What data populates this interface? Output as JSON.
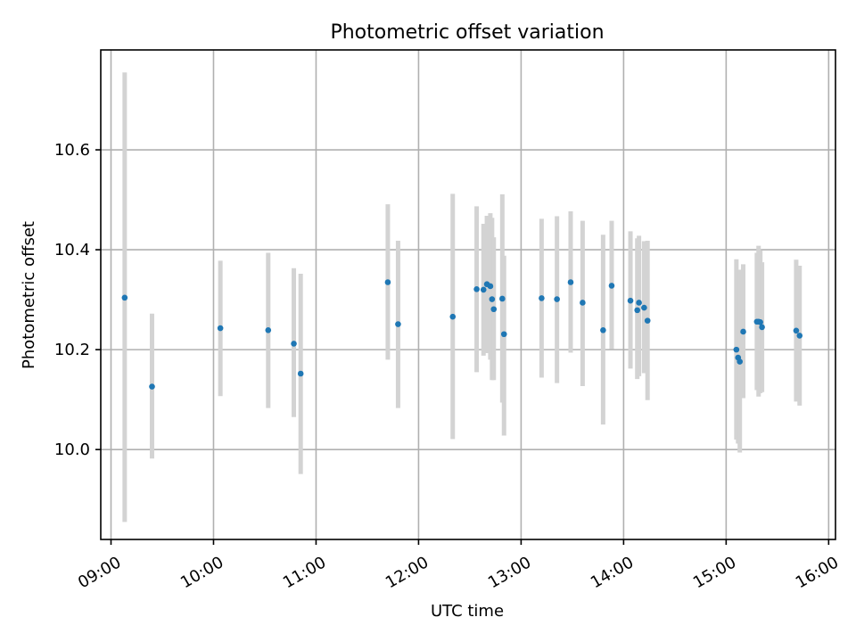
{
  "chart_data": {
    "type": "scatter",
    "title": "Photometric offset variation",
    "xlabel": "UTC time",
    "ylabel": "Photometric offset",
    "x_unit": "UTC time (HH:MM)",
    "xlim": [
      "08:54",
      "16:04"
    ],
    "ylim": [
      9.82,
      10.8
    ],
    "x_ticks": [
      "09:00",
      "10:00",
      "11:00",
      "12:00",
      "13:00",
      "14:00",
      "15:00",
      "16:00"
    ],
    "y_ticks": [
      10.0,
      10.2,
      10.4,
      10.6
    ],
    "y_tick_labels": [
      "10.0",
      "10.2",
      "10.4",
      "10.6"
    ],
    "grid": true,
    "marker_color": "#1f77b4",
    "errorbar_color": "#d3d3d3",
    "points": [
      {
        "time": "09:08",
        "y": 10.304,
        "low": 9.855,
        "high": 10.755
      },
      {
        "time": "09:24",
        "y": 10.126,
        "low": 9.982,
        "high": 10.272
      },
      {
        "time": "10:04",
        "y": 10.243,
        "low": 10.107,
        "high": 10.378
      },
      {
        "time": "10:32",
        "y": 10.239,
        "low": 10.083,
        "high": 10.394
      },
      {
        "time": "10:47",
        "y": 10.212,
        "low": 10.065,
        "high": 10.363
      },
      {
        "time": "10:51",
        "y": 10.152,
        "low": 9.951,
        "high": 10.352
      },
      {
        "time": "11:42",
        "y": 10.335,
        "low": 10.18,
        "high": 10.491
      },
      {
        "time": "11:48",
        "y": 10.251,
        "low": 10.083,
        "high": 10.418
      },
      {
        "time": "12:20",
        "y": 10.266,
        "low": 10.021,
        "high": 10.512
      },
      {
        "time": "12:34",
        "y": 10.321,
        "low": 10.155,
        "high": 10.487
      },
      {
        "time": "12:38",
        "y": 10.32,
        "low": 10.188,
        "high": 10.452
      },
      {
        "time": "12:40",
        "y": 10.331,
        "low": 10.193,
        "high": 10.468
      },
      {
        "time": "12:42",
        "y": 10.327,
        "low": 10.18,
        "high": 10.473
      },
      {
        "time": "12:43",
        "y": 10.301,
        "low": 10.139,
        "high": 10.464
      },
      {
        "time": "12:44",
        "y": 10.281,
        "low": 10.139,
        "high": 10.425
      },
      {
        "time": "12:49",
        "y": 10.302,
        "low": 10.094,
        "high": 10.511
      },
      {
        "time": "12:50",
        "y": 10.231,
        "low": 10.028,
        "high": 10.388
      },
      {
        "time": "13:12",
        "y": 10.303,
        "low": 10.144,
        "high": 10.462
      },
      {
        "time": "13:21",
        "y": 10.301,
        "low": 10.133,
        "high": 10.467
      },
      {
        "time": "13:29",
        "y": 10.335,
        "low": 10.194,
        "high": 10.477
      },
      {
        "time": "13:36",
        "y": 10.294,
        "low": 10.127,
        "high": 10.458
      },
      {
        "time": "13:48",
        "y": 10.239,
        "low": 10.05,
        "high": 10.43
      },
      {
        "time": "13:53",
        "y": 10.328,
        "low": 10.201,
        "high": 10.458
      },
      {
        "time": "14:04",
        "y": 10.298,
        "low": 10.162,
        "high": 10.437
      },
      {
        "time": "14:08",
        "y": 10.279,
        "low": 10.141,
        "high": 10.423
      },
      {
        "time": "14:09",
        "y": 10.294,
        "low": 10.147,
        "high": 10.428
      },
      {
        "time": "14:12",
        "y": 10.284,
        "low": 10.153,
        "high": 10.417
      },
      {
        "time": "14:14",
        "y": 10.258,
        "low": 10.099,
        "high": 10.418
      },
      {
        "time": "15:06",
        "y": 10.2,
        "low": 10.02,
        "high": 10.381
      },
      {
        "time": "15:07",
        "y": 10.184,
        "low": 10.012,
        "high": 10.356
      },
      {
        "time": "15:08",
        "y": 10.176,
        "low": 9.994,
        "high": 10.36
      },
      {
        "time": "15:10",
        "y": 10.236,
        "low": 10.103,
        "high": 10.371
      },
      {
        "time": "15:18",
        "y": 10.256,
        "low": 10.119,
        "high": 10.394
      },
      {
        "time": "15:19",
        "y": 10.256,
        "low": 10.106,
        "high": 10.408
      },
      {
        "time": "15:20",
        "y": 10.255,
        "low": 10.113,
        "high": 10.399
      },
      {
        "time": "15:21",
        "y": 10.245,
        "low": 10.115,
        "high": 10.375
      },
      {
        "time": "15:41",
        "y": 10.238,
        "low": 10.096,
        "high": 10.38
      },
      {
        "time": "15:43",
        "y": 10.228,
        "low": 10.088,
        "high": 10.368
      }
    ]
  }
}
